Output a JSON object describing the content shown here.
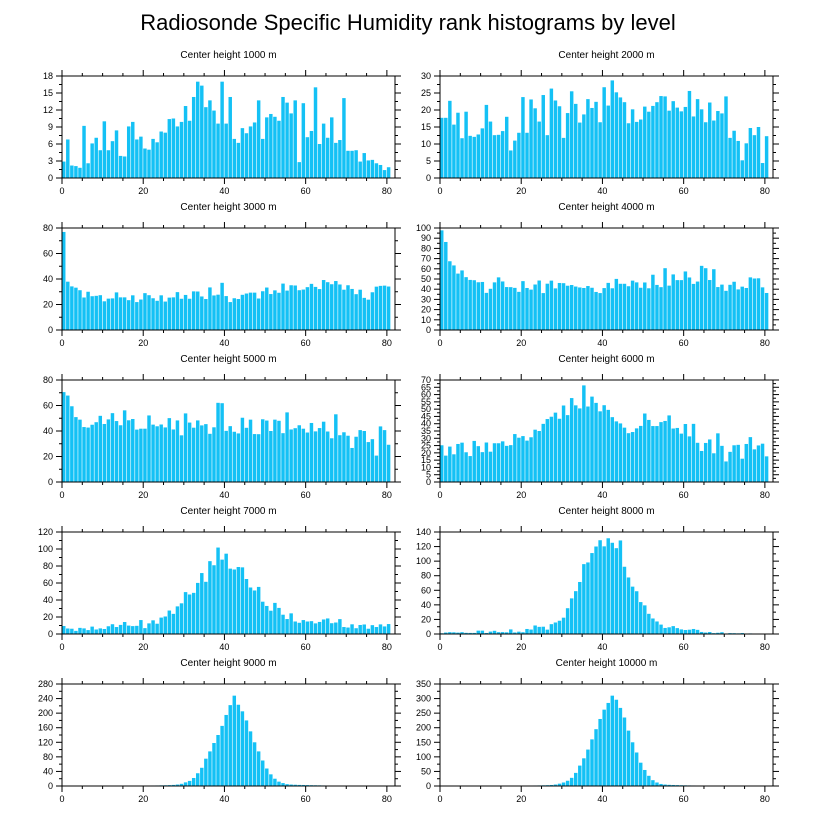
{
  "figure_title": "Radiosonde Specific Humidity rank histograms by level",
  "bar_color": "#14c1f5",
  "chart_data": [
    {
      "type": "bar",
      "title": "Center height 1000 m",
      "x_ticks": [
        0,
        20,
        40,
        60,
        80
      ],
      "y_ticks": [
        0,
        3,
        6,
        9,
        12,
        15,
        18
      ],
      "xlim": [
        0,
        82
      ],
      "ylim": [
        0,
        18
      ],
      "values": [
        2.9,
        6.8,
        2.2,
        2.1,
        1.8,
        9.2,
        2.6,
        6.1,
        7.1,
        4.9,
        10,
        4.9,
        6.5,
        8.4,
        3.9,
        3.8,
        9.1,
        9.9,
        6.8,
        7.3,
        5.2,
        5,
        6.9,
        6.3,
        8.2,
        8,
        10.4,
        10.5,
        9.1,
        9.9,
        12.7,
        10.1,
        14.3,
        17,
        16.3,
        12.5,
        13.7,
        11.9,
        9.6,
        17,
        9.6,
        14.3,
        6.9,
        6.2,
        8.8,
        7.9,
        9.1,
        9.8,
        13.7,
        6.9,
        10.7,
        11.3,
        10.8,
        10.1,
        14.3,
        13.3,
        11.4,
        13.7,
        2.8,
        13.2,
        7.2,
        8.3,
        16,
        6,
        9.6,
        7.1,
        10.7,
        6.2,
        6.7,
        14.1,
        4.8,
        4.8,
        4.9,
        2.9,
        4.4,
        3.1,
        3.2,
        2.6,
        2.3,
        1.4,
        1.9
      ]
    },
    {
      "type": "bar",
      "title": "Center height 2000 m",
      "x_ticks": [
        0,
        20,
        40,
        60,
        80
      ],
      "y_ticks": [
        0,
        5,
        10,
        15,
        20,
        25,
        30
      ],
      "xlim": [
        0,
        82
      ],
      "ylim": [
        0,
        30
      ],
      "values": [
        17.7,
        17.7,
        22.7,
        15.7,
        19.2,
        11.7,
        19.5,
        12.4,
        12.1,
        12.8,
        14.6,
        21.5,
        16.6,
        12.6,
        12.7,
        13.8,
        18,
        8.1,
        11,
        13.3,
        23.8,
        13.3,
        23.1,
        20.5,
        16.6,
        24.4,
        12.6,
        26.3,
        22.8,
        21.1,
        11.8,
        19.1,
        25.5,
        21.8,
        16.3,
        18.7,
        23.2,
        20.6,
        22.4,
        16.4,
        26.7,
        21.3,
        28.7,
        25.2,
        23.7,
        22.3,
        16.1,
        20.2,
        16.5,
        17.2,
        21,
        19.5,
        21.2,
        22.3,
        24.1,
        24,
        19.8,
        22.6,
        20.7,
        19.6,
        20.9,
        25.6,
        18.1,
        23.2,
        20.2,
        16.4,
        22.2,
        16.9,
        19.7,
        19,
        24,
        11.8,
        13.9,
        10.9,
        5.2,
        10.2,
        14.7,
        12.6,
        15,
        4.4,
        12.3
      ]
    },
    {
      "type": "bar",
      "title": "Center height 3000 m",
      "x_ticks": [
        0,
        20,
        40,
        60,
        80
      ],
      "y_ticks": [
        0,
        20,
        40,
        60,
        80
      ],
      "xlim": [
        0,
        82
      ],
      "ylim": [
        0,
        80
      ],
      "values": [
        76.9,
        37.9,
        34.2,
        33.2,
        31.2,
        25.5,
        30,
        26.5,
        26.8,
        27.3,
        22.5,
        24.6,
        24.8,
        29.5,
        25.6,
        25.6,
        23.4,
        27.2,
        21.9,
        23.9,
        28.9,
        27.3,
        24.9,
        22.9,
        27.2,
        22.3,
        25.4,
        25.6,
        29.7,
        24.5,
        27.5,
        24.5,
        30.3,
        30.2,
        26.3,
        24.3,
        33.4,
        27.1,
        27.7,
        37,
        26.6,
        21.9,
        24.9,
        24.3,
        27.6,
        28.6,
        29.3,
        29.3,
        24.7,
        30.4,
        33.3,
        28.2,
        31.1,
        29.2,
        36.4,
        30.9,
        35.1,
        34.9,
        31.2,
        31.7,
        33.6,
        36.2,
        33.8,
        32.1,
        39.2,
        37.5,
        35.9,
        38.4,
        35.7,
        31.6,
        35.1,
        32.2,
        28.1,
        31.6,
        25.2,
        23.8,
        29.6,
        34,
        34.6,
        34.8,
        34.1
      ]
    },
    {
      "type": "bar",
      "title": "Center height 4000 m",
      "x_ticks": [
        0,
        20,
        40,
        60,
        80
      ],
      "y_ticks": [
        0,
        10,
        20,
        30,
        40,
        50,
        60,
        70,
        80,
        90,
        100
      ],
      "xlim": [
        0,
        82
      ],
      "ylim": [
        0,
        100
      ],
      "values": [
        97.7,
        86.3,
        67.4,
        63.3,
        55.3,
        58.4,
        51.8,
        49.1,
        48.8,
        46.8,
        47.1,
        36.4,
        40.4,
        46.7,
        51.6,
        47.6,
        42.1,
        42,
        41.3,
        37.4,
        47.9,
        41.2,
        39.6,
        44.6,
        48.5,
        36.2,
        45.4,
        48.4,
        40.8,
        46.1,
        45.9,
        43.4,
        44.1,
        42.6,
        41.7,
        41.2,
        43.1,
        41.4,
        37.3,
        36.2,
        41.1,
        46.2,
        40.9,
        50.1,
        45.3,
        45.3,
        42.9,
        48.4,
        46.7,
        41.4,
        46.6,
        40.9,
        54.2,
        44.2,
        42,
        60.6,
        43.5,
        54.5,
        48.9,
        48.9,
        57.4,
        51.5,
        45.2,
        47.5,
        62.9,
        60.6,
        49,
        59.6,
        42.1,
        44.5,
        38.4,
        44.3,
        47.3,
        39.8,
        42.5,
        41.2,
        51.6,
        50.5,
        50.7,
        41.8,
        36.3
      ]
    },
    {
      "type": "bar",
      "title": "Center height 5000 m",
      "x_ticks": [
        0,
        20,
        40,
        60,
        80
      ],
      "y_ticks": [
        0,
        20,
        40,
        60,
        80
      ],
      "xlim": [
        0,
        82
      ],
      "ylim": [
        0,
        80
      ],
      "values": [
        70.5,
        67.8,
        59.4,
        50.9,
        48.9,
        43.1,
        42.7,
        44.9,
        46.9,
        51.9,
        45.5,
        49.1,
        54,
        47.8,
        44.5,
        56.2,
        48.4,
        49.4,
        41.1,
        41.8,
        41.8,
        52.2,
        45,
        43.7,
        45.1,
        42.8,
        50.1,
        41.2,
        48.3,
        36.6,
        53.8,
        46.6,
        42.6,
        48.3,
        44.4,
        45.4,
        37.8,
        42.9,
        62.1,
        61.8,
        40.1,
        43.8,
        39.4,
        38.1,
        50.4,
        42.5,
        48.9,
        37.6,
        37.5,
        49.2,
        48.2,
        40,
        48.9,
        48,
        38.3,
        54.6,
        41.2,
        42.2,
        44.5,
        41.8,
        38.8,
        46.3,
        39.7,
        42.3,
        47.3,
        39.6,
        34.3,
        53.1,
        36.7,
        39,
        36.3,
        26.7,
        35.5,
        40.7,
        40,
        31.3,
        33.6,
        20.7,
        43.6,
        40.7,
        29.2
      ]
    },
    {
      "type": "bar",
      "title": "Center height 6000 m",
      "x_ticks": [
        0,
        20,
        40,
        60,
        80
      ],
      "y_ticks": [
        0,
        5,
        10,
        15,
        20,
        25,
        30,
        35,
        40,
        45,
        50,
        55,
        60,
        65,
        70
      ],
      "xlim": [
        0,
        82
      ],
      "ylim": [
        0,
        70
      ],
      "values": [
        25.2,
        18.1,
        24.3,
        19,
        26.1,
        27,
        20.4,
        17.8,
        28.2,
        24.6,
        20.5,
        27.1,
        20.8,
        26.6,
        26.6,
        27.9,
        24.8,
        25.3,
        32.9,
        30.4,
        31.5,
        28.4,
        30.7,
        35.9,
        35,
        39.9,
        43.2,
        44.8,
        47.6,
        43.4,
        52.5,
        45.9,
        57.6,
        52.6,
        50.5,
        66.3,
        51.8,
        58.6,
        54.3,
        48.5,
        52.7,
        49.5,
        44.5,
        41.6,
        40.2,
        37.3,
        33.5,
        34.3,
        36.8,
        38.5,
        47,
        42.6,
        38.4,
        38.4,
        41.1,
        41.9,
        45.7,
        36.7,
        37.1,
        33.2,
        39.8,
        31.3,
        39.9,
        26.9,
        21.3,
        26.8,
        29.2,
        19.7,
        33.4,
        24.8,
        14.1,
        20.7,
        25.2,
        25.5,
        16,
        26.1,
        30.8,
        22.4,
        25.1,
        26.3,
        17.6
      ]
    },
    {
      "type": "bar",
      "title": "Center height 7000 m",
      "x_ticks": [
        0,
        20,
        40,
        60,
        80
      ],
      "y_ticks": [
        0,
        20,
        40,
        60,
        80,
        100,
        120
      ],
      "xlim": [
        0,
        82
      ],
      "ylim": [
        0,
        120
      ],
      "values": [
        9.4,
        6.5,
        6.2,
        3.7,
        7.2,
        6.6,
        4.6,
        8.7,
        5.3,
        6.6,
        5.9,
        9.1,
        11.5,
        8.2,
        10.7,
        14.1,
        9.9,
        9.3,
        9.6,
        16.4,
        6.9,
        12.5,
        16.1,
        12.1,
        19.3,
        20.6,
        27.6,
        23.7,
        32.5,
        36.1,
        49.3,
        46.5,
        48.4,
        60.1,
        71.7,
        61.4,
        85.7,
        80.9,
        101.7,
        87.5,
        94.5,
        76.9,
        75.9,
        78.8,
        78.4,
        64.7,
        54.7,
        51.2,
        55.4,
        38,
        33,
        27.4,
        36.6,
        30.7,
        22.7,
        17.6,
        24.3,
        14.7,
        13.2,
        16.4,
        14.7,
        15.1,
        12.5,
        14.2,
        17.1,
        18.3,
        12.7,
        13.5,
        17.5,
        8.2,
        7.6,
        11.4,
        6.8,
        10.6,
        11.2,
        6.2,
        10.4,
        8.2,
        11.3,
        8.9,
        11.7
      ]
    },
    {
      "type": "bar",
      "title": "Center height 8000 m",
      "x_ticks": [
        0,
        20,
        40,
        60,
        80
      ],
      "y_ticks": [
        0,
        20,
        40,
        60,
        80,
        100,
        120,
        140
      ],
      "xlim": [
        0,
        82
      ],
      "ylim": [
        0,
        140
      ],
      "values": [
        1,
        2,
        2.5,
        2.3,
        1.9,
        2.5,
        1.6,
        1.5,
        1.5,
        4.6,
        4.6,
        1.4,
        3.3,
        4.4,
        2.5,
        2.6,
        2.3,
        6.3,
        2.1,
        3.2,
        2.4,
        6.9,
        6.1,
        11.7,
        9.8,
        10,
        6,
        13.5,
        15.8,
        18.2,
        22.4,
        35.4,
        48.9,
        58.8,
        71.4,
        95.9,
        98.2,
        111.1,
        120.1,
        128.7,
        120.3,
        131.4,
        125.2,
        117.8,
        128.4,
        92.3,
        77.6,
        65,
        58.7,
        43.8,
        39.3,
        27.7,
        21.3,
        17.2,
        12.9,
        8.3,
        9.2,
        10.8,
        8.1,
        6.3,
        5.5,
        5.9,
        6.9,
        5.7,
        2.8,
        2,
        2.7,
        1.2,
        1.7,
        2.4,
        0.7,
        1.2,
        1.1,
        0.9,
        1.3,
        0.5,
        0.8,
        0.4,
        0.5,
        0.3,
        0.6
      ]
    },
    {
      "type": "bar",
      "title": "Center height 9000 m",
      "x_ticks": [
        0,
        20,
        40,
        60,
        80
      ],
      "y_ticks": [
        0,
        40,
        80,
        120,
        160,
        200,
        240,
        280
      ],
      "xlim": [
        0,
        82
      ],
      "ylim": [
        0,
        280
      ],
      "values": [
        0.2,
        0.2,
        0.3,
        0.2,
        0.3,
        0.3,
        0.2,
        0.4,
        0.3,
        0.4,
        0.4,
        0.4,
        0.5,
        0.6,
        0.6,
        0.7,
        0.8,
        0.9,
        1,
        1,
        1.2,
        1.2,
        1.4,
        1.5,
        1.8,
        2,
        2.4,
        3,
        4,
        6,
        10,
        14,
        22,
        35,
        50,
        75,
        95,
        118,
        140,
        165,
        195,
        222,
        248,
        223,
        205,
        180,
        150,
        120,
        95,
        70,
        48,
        32,
        20,
        12,
        8,
        5,
        4,
        3.5,
        3,
        2.8,
        2.5,
        2.2,
        2,
        1.8,
        1.5,
        1.3,
        1.1,
        1,
        0.9,
        0.8,
        0.7,
        0.6,
        0.5,
        0.4,
        0.4,
        0.3,
        0.3,
        0.3,
        0.2,
        0.2,
        0.2
      ]
    },
    {
      "type": "bar",
      "title": "Center height 10000 m",
      "x_ticks": [
        0,
        20,
        40,
        60,
        80
      ],
      "y_ticks": [
        0,
        50,
        100,
        150,
        200,
        250,
        300,
        350
      ],
      "xlim": [
        0,
        82
      ],
      "ylim": [
        0,
        350
      ],
      "values": [
        0.2,
        0.3,
        0.2,
        0.3,
        0.3,
        0.4,
        0.3,
        0.5,
        0.4,
        0.5,
        0.5,
        0.6,
        0.6,
        0.7,
        0.8,
        0.8,
        0.9,
        1,
        1.1,
        1.2,
        1.3,
        1.5,
        1.6,
        1.8,
        2,
        2.4,
        2.8,
        3.5,
        5,
        8,
        12,
        18,
        28,
        45,
        70,
        95,
        125,
        160,
        195,
        230,
        262,
        285,
        310,
        296,
        268,
        235,
        190,
        150,
        115,
        80,
        55,
        35,
        20,
        12,
        7,
        5,
        4,
        3.5,
        3,
        2.6,
        2.3,
        2,
        1.8,
        1.6,
        1.4,
        1.2,
        1,
        0.9,
        0.8,
        0.7,
        0.6,
        0.5,
        0.5,
        0.4,
        0.4,
        0.3,
        0.3,
        0.3,
        0.2,
        0.2,
        0.2
      ]
    }
  ]
}
